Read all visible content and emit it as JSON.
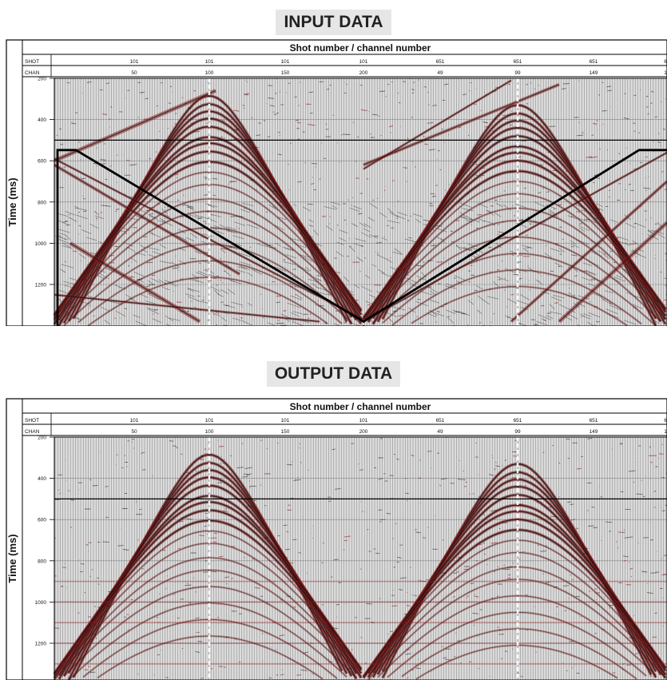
{
  "panels": [
    {
      "title": "INPUT DATA",
      "header_title": "Shot number / channel number",
      "row_labels": [
        "SHOT",
        "CHAN"
      ],
      "ylabel": "Time (ms)",
      "shot_labels": [
        "101",
        "101",
        "101",
        "101",
        "651",
        "651",
        "651",
        "6"
      ],
      "chan_labels": [
        "50",
        "100",
        "150",
        "200",
        "49",
        "99",
        "149",
        "1"
      ],
      "time_ticks": [
        "200",
        "400",
        "600",
        "800",
        "1000",
        "1200"
      ],
      "mute_polygon": true,
      "noise_level": "high"
    },
    {
      "title": "OUTPUT DATA",
      "header_title": "Shot number / channel number",
      "row_labels": [
        "SHOT",
        "CHAN"
      ],
      "ylabel": "Time (ms)",
      "shot_labels": [
        "101",
        "101",
        "101",
        "101",
        "651",
        "651",
        "651",
        "6"
      ],
      "chan_labels": [
        "50",
        "100",
        "150",
        "200",
        "49",
        "99",
        "149",
        "1"
      ],
      "time_ticks": [
        "200",
        "400",
        "600",
        "800",
        "1000",
        "1200"
      ],
      "mute_polygon": false,
      "noise_level": "low"
    }
  ],
  "chart_data": [
    {
      "type": "heatmap",
      "title": "INPUT DATA",
      "xlabel": "Shot number / channel number",
      "ylabel": "Time (ms)",
      "x_ticks": [
        "101/50",
        "101/100",
        "101/150",
        "101/200",
        "651/49",
        "651/99",
        "651/149"
      ],
      "y_ticks": [
        200,
        400,
        600,
        800,
        1000,
        1200
      ],
      "ylim": [
        200,
        1380
      ],
      "colors": {
        "wiggle": "#111111",
        "amplitude": "#8b1a1a",
        "mute_line": "#000000"
      }
    },
    {
      "type": "heatmap",
      "title": "OUTPUT DATA",
      "xlabel": "Shot number / channel number",
      "ylabel": "Time (ms)",
      "x_ticks": [
        "101/50",
        "101/100",
        "101/150",
        "101/200",
        "651/49",
        "651/99",
        "651/149"
      ],
      "y_ticks": [
        200,
        400,
        600,
        800,
        1000,
        1200
      ],
      "ylim": [
        200,
        1380
      ],
      "colors": {
        "wiggle": "#111111",
        "amplitude": "#8b1a1a"
      }
    }
  ]
}
